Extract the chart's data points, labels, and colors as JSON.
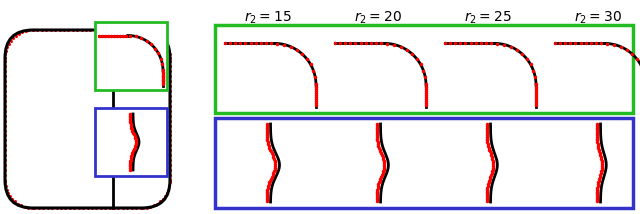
{
  "title_labels": [
    "$r_2 = 15$",
    "$r_2 = 20$",
    "$r_2 = 25$",
    "$r_2 = 30$"
  ],
  "green_box_color": "#22bb22",
  "blue_box_color": "#3333cc",
  "red_dot_color": "#ff0000",
  "black_line_color": "#000000",
  "bg_color": "#ffffff",
  "fig_width": 6.4,
  "fig_height": 2.14,
  "dpi": 100
}
